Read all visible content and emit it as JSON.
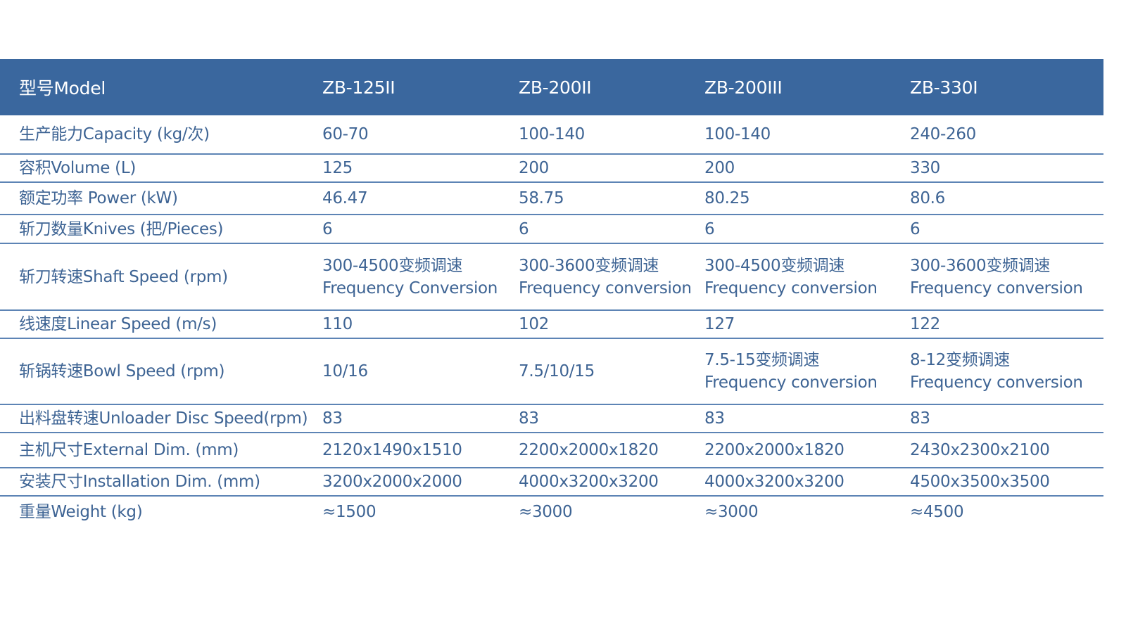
{
  "header": [
    "型号Model",
    "ZB-125II",
    "ZB-200II",
    "ZB-200III",
    "ZB-330I"
  ],
  "rows": [
    {
      "label": "生产能力Capacity (kg/次)",
      "values": [
        [
          "60-70"
        ],
        [
          "100-140"
        ],
        [
          "100-140"
        ],
        [
          "240-260"
        ]
      ]
    },
    {
      "label": "容积Volume (L)",
      "values": [
        [
          "125"
        ],
        [
          "200"
        ],
        [
          "200"
        ],
        [
          "330"
        ]
      ]
    },
    {
      "label": "额定功率 Power (kW)",
      "values": [
        [
          "46.47"
        ],
        [
          "58.75"
        ],
        [
          "80.25"
        ],
        [
          "80.6"
        ]
      ]
    },
    {
      "label": "斩刀数量Knives (把/Pieces)",
      "values": [
        [
          "6"
        ],
        [
          "6"
        ],
        [
          "6"
        ],
        [
          "6"
        ]
      ]
    },
    {
      "label": "斩刀转速Shaft Speed (rpm)",
      "values": [
        [
          "300-4500变频调速",
          "Frequency Conversion"
        ],
        [
          "300-3600变频调速",
          "Frequency conversion"
        ],
        [
          "300-4500变频调速",
          "Frequency conversion"
        ],
        [
          "300-3600变频调速",
          "Frequency conversion"
        ]
      ]
    },
    {
      "label": "线速度Linear Speed (m/s)",
      "values": [
        [
          "110"
        ],
        [
          "102"
        ],
        [
          "127"
        ],
        [
          "122"
        ]
      ]
    },
    {
      "label": "斩锅转速Bowl Speed (rpm)",
      "values": [
        [
          "10/16"
        ],
        [
          "7.5/10/15"
        ],
        [
          "7.5-15变频调速",
          "Frequency conversion"
        ],
        [
          "8-12变频调速",
          "Frequency conversion"
        ]
      ]
    },
    {
      "label": "出料盘转速Unloader Disc Speed(rpm)",
      "values": [
        [
          "83"
        ],
        [
          "83"
        ],
        [
          "83"
        ],
        [
          "83"
        ]
      ]
    },
    {
      "label": "主机尺寸External Dim. (mm)",
      "values": [
        [
          "2120x1490x1510"
        ],
        [
          "2200x2000x1820"
        ],
        [
          "2200x2000x1820"
        ],
        [
          "2430x2300x2100"
        ]
      ]
    },
    {
      "label": "安装尺寸Installation Dim. (mm)",
      "values": [
        [
          "3200x2000x2000"
        ],
        [
          "4000x3200x3200"
        ],
        [
          "4000x3200x3200"
        ],
        [
          "4500x3500x3500"
        ]
      ]
    },
    {
      "label": "重量Weight (kg)",
      "values": [
        [
          "≈1500"
        ],
        [
          "≈3000"
        ],
        [
          "≈3000"
        ],
        [
          "≈4500"
        ]
      ]
    }
  ],
  "colors": {
    "header_bg": "#3a679e",
    "text": "#3e6494",
    "divider": "#5d84b5"
  }
}
